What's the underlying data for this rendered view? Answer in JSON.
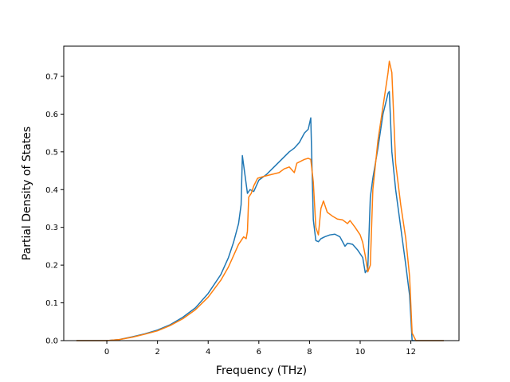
{
  "chart_data": {
    "type": "line",
    "xlabel": "Frequency (THz)",
    "ylabel": "Partial Density of States",
    "xlim": [
      -1.7,
      13.9
    ],
    "ylim": [
      0,
      0.78
    ],
    "xticks": [
      0,
      2,
      4,
      6,
      8,
      10,
      12
    ],
    "yticks": [
      0.0,
      0.1,
      0.2,
      0.3,
      0.4,
      0.5,
      0.6,
      0.7
    ],
    "xtick_labels": [
      "0",
      "2",
      "4",
      "6",
      "8",
      "10",
      "12"
    ],
    "ytick_labels": [
      "0.0",
      "0.1",
      "0.2",
      "0.3",
      "0.4",
      "0.5",
      "0.6",
      "0.7"
    ],
    "grid": false,
    "series": [
      {
        "color": "#1f77b4",
        "x": [
          -1.2,
          -0.5,
          0,
          0.5,
          1.0,
          1.5,
          2.0,
          2.5,
          3.0,
          3.5,
          4.0,
          4.5,
          4.8,
          5.0,
          5.2,
          5.3,
          5.35,
          5.45,
          5.55,
          5.65,
          5.8,
          6.0,
          6.3,
          6.6,
          6.9,
          7.2,
          7.4,
          7.6,
          7.8,
          7.95,
          8.05,
          8.15,
          8.25,
          8.35,
          8.45,
          8.6,
          8.8,
          9.0,
          9.2,
          9.4,
          9.5,
          9.7,
          9.9,
          10.1,
          10.2,
          10.3,
          10.4,
          10.5,
          10.7,
          10.9,
          11.1,
          11.15,
          11.25,
          11.4,
          11.6,
          11.8,
          11.95,
          12.05,
          12.2,
          12.6,
          13.3
        ],
        "y": [
          0,
          0,
          0.0,
          0.003,
          0.01,
          0.018,
          0.028,
          0.042,
          0.062,
          0.087,
          0.125,
          0.175,
          0.22,
          0.26,
          0.31,
          0.36,
          0.49,
          0.44,
          0.39,
          0.4,
          0.395,
          0.425,
          0.44,
          0.46,
          0.48,
          0.5,
          0.51,
          0.525,
          0.55,
          0.56,
          0.59,
          0.32,
          0.265,
          0.262,
          0.27,
          0.275,
          0.28,
          0.282,
          0.275,
          0.25,
          0.258,
          0.255,
          0.24,
          0.22,
          0.18,
          0.19,
          0.38,
          0.43,
          0.51,
          0.6,
          0.655,
          0.66,
          0.5,
          0.4,
          0.3,
          0.2,
          0.12,
          0.0,
          0,
          0,
          0
        ]
      },
      {
        "color": "#ff7f0e",
        "x": [
          -1.2,
          -0.5,
          0,
          0.5,
          1.0,
          1.5,
          2.0,
          2.5,
          3.0,
          3.5,
          4.0,
          4.5,
          4.8,
          5.0,
          5.2,
          5.4,
          5.5,
          5.55,
          5.6,
          5.7,
          5.8,
          5.95,
          6.2,
          6.5,
          6.8,
          7.0,
          7.2,
          7.4,
          7.5,
          7.8,
          7.95,
          8.05,
          8.15,
          8.25,
          8.35,
          8.45,
          8.55,
          8.7,
          8.9,
          9.1,
          9.3,
          9.5,
          9.6,
          9.8,
          10.0,
          10.1,
          10.2,
          10.3,
          10.4,
          10.5,
          10.7,
          10.9,
          11.1,
          11.15,
          11.25,
          11.4,
          11.6,
          11.8,
          11.95,
          12.05,
          12.2,
          12.6,
          13.3
        ],
        "y": [
          0,
          0,
          0.0,
          0.003,
          0.009,
          0.017,
          0.026,
          0.04,
          0.058,
          0.082,
          0.115,
          0.16,
          0.195,
          0.225,
          0.255,
          0.275,
          0.27,
          0.29,
          0.38,
          0.39,
          0.41,
          0.43,
          0.435,
          0.44,
          0.445,
          0.455,
          0.46,
          0.445,
          0.47,
          0.48,
          0.483,
          0.48,
          0.42,
          0.3,
          0.28,
          0.35,
          0.37,
          0.34,
          0.33,
          0.322,
          0.32,
          0.31,
          0.318,
          0.3,
          0.28,
          0.26,
          0.225,
          0.182,
          0.2,
          0.4,
          0.53,
          0.62,
          0.71,
          0.74,
          0.71,
          0.47,
          0.36,
          0.27,
          0.17,
          0.02,
          0,
          0,
          0
        ]
      }
    ]
  }
}
